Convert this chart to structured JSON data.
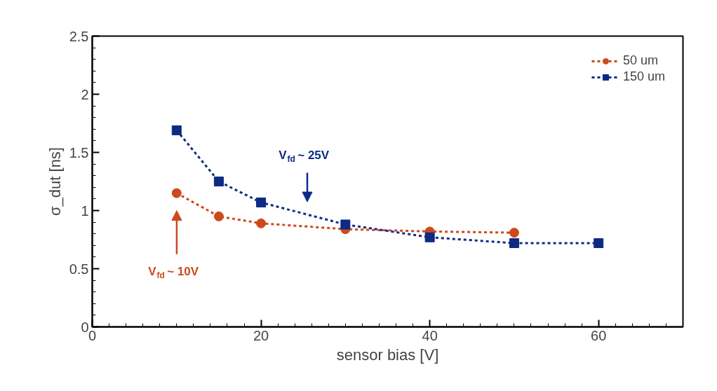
{
  "chart_data": {
    "type": "line",
    "xlabel": "sensor bias [V]",
    "ylabel": "σ_dut [ns]",
    "series": [
      {
        "name": "50 um",
        "color": "#cc4a1c",
        "marker": "circle",
        "line_style": "dashed",
        "x": [
          10,
          15,
          20,
          30,
          40,
          50
        ],
        "values": [
          1.15,
          0.95,
          0.89,
          0.84,
          0.82,
          0.81
        ],
        "errors": [
          0.04,
          0.03,
          0.03,
          0.03,
          0.03,
          0.03
        ]
      },
      {
        "name": "150 um",
        "color": "#0d2a85",
        "marker": "square",
        "line_style": "dashed",
        "x": [
          10,
          15,
          20,
          30,
          40,
          50,
          60
        ],
        "values": [
          1.69,
          1.25,
          1.07,
          0.88,
          0.77,
          0.72,
          0.72
        ],
        "errors": [
          0.04,
          0.03,
          0.03,
          0.03,
          0.03,
          0.03,
          0.03
        ]
      }
    ],
    "xlim": [
      0,
      70
    ],
    "xticks": [
      0,
      20,
      40,
      60
    ],
    "ylim": [
      0,
      2.5
    ],
    "yticks": [
      0,
      0.5,
      1,
      1.5,
      2,
      2.5
    ],
    "grid": false,
    "legend": "top right",
    "annotations": [
      "V$_{fd}$ ~ 10V",
      "V$_{fd}$ ~ 25V"
    ]
  }
}
